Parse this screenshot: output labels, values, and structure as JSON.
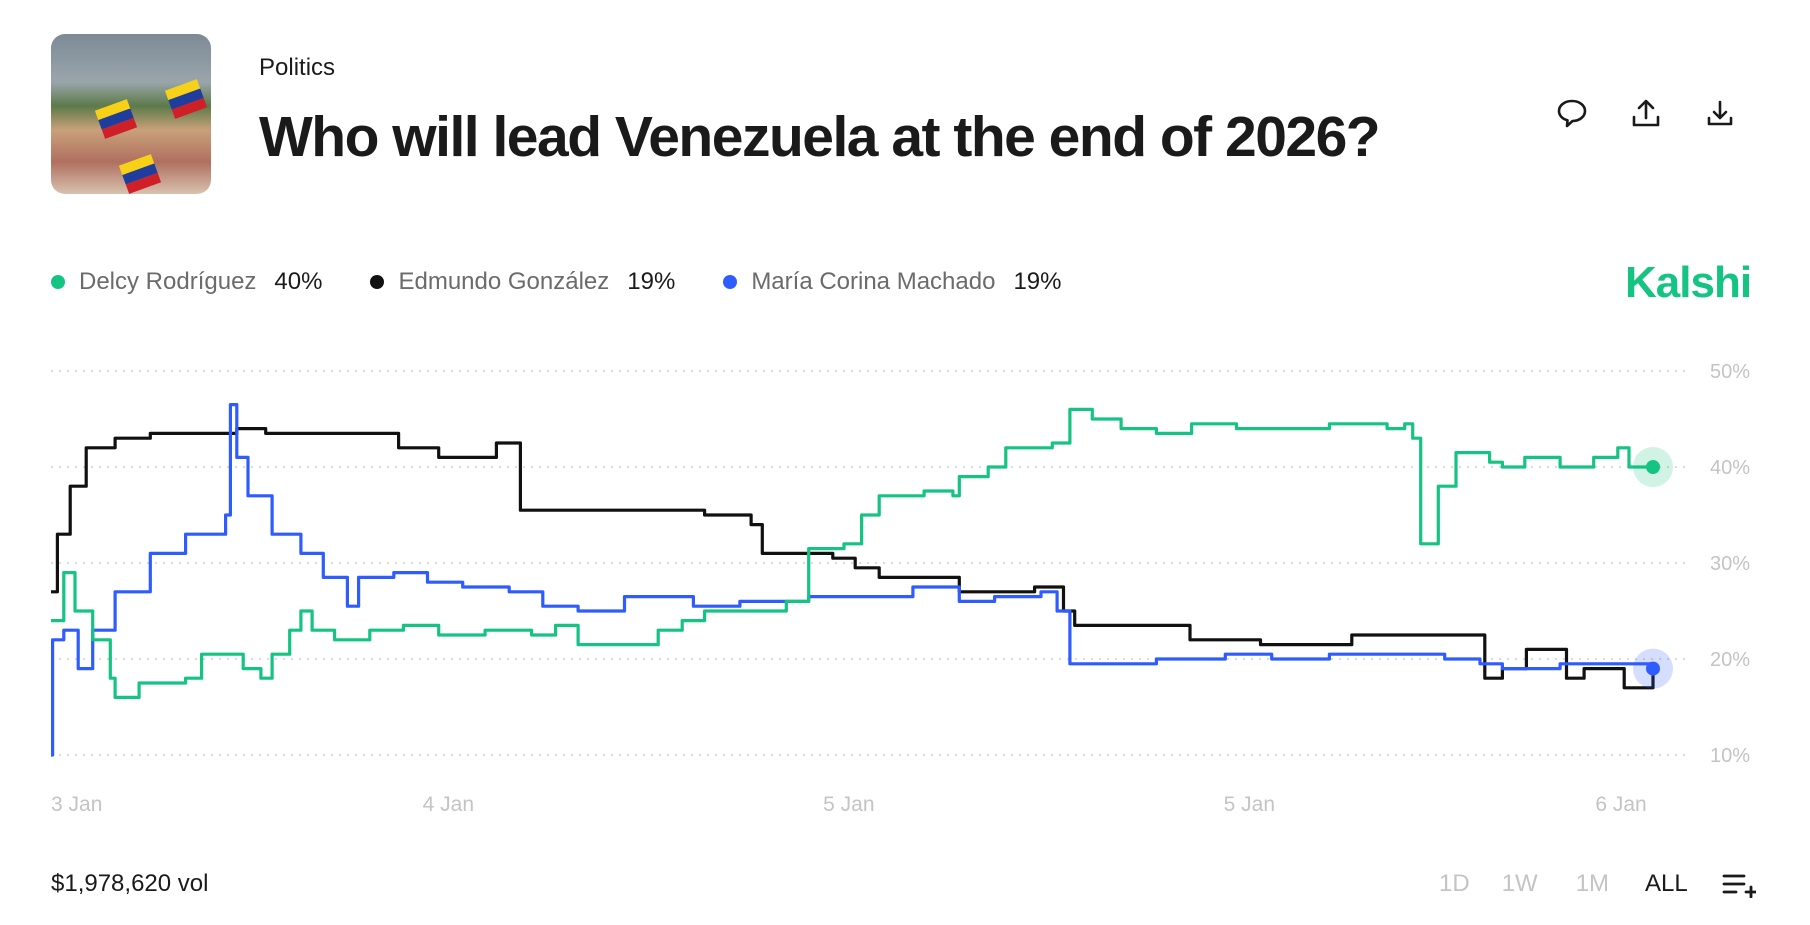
{
  "header": {
    "category": "Politics",
    "title": "Who will lead Venezuela at the end of 2026?",
    "actions": [
      "comment-icon",
      "share-icon",
      "download-icon"
    ]
  },
  "brand": "Kalshi",
  "legend": [
    {
      "name": "Delcy Rodríguez",
      "value": "40%",
      "color": "#15c383"
    },
    {
      "name": "Edmundo González",
      "value": "19%",
      "color": "#111111"
    },
    {
      "name": "María Corina Machado",
      "value": "19%",
      "color": "#2e5cff"
    }
  ],
  "footer": {
    "volume": "$1,978,620 vol",
    "ranges": [
      "1D",
      "1W",
      "1M",
      "ALL"
    ],
    "active_range": "ALL"
  },
  "chart_data": {
    "type": "line",
    "ylim": [
      10,
      50
    ],
    "yticks": [
      50,
      40,
      30,
      20,
      10
    ],
    "ytick_labels": [
      "50%",
      "40%",
      "30%",
      "20%",
      "10%"
    ],
    "x_range": [
      0,
      100
    ],
    "xtick_labels": [
      {
        "t": 0,
        "label": "3 Jan"
      },
      {
        "t": 23.2,
        "label": "4 Jan"
      },
      {
        "t": 48.2,
        "label": "5 Jan"
      },
      {
        "t": 73.2,
        "label": "5 Jan"
      },
      {
        "t": 96.4,
        "label": "6 Jan"
      }
    ],
    "grid": true,
    "legend_position": "top-left",
    "series": [
      {
        "name": "Edmundo González",
        "color": "#111111",
        "points": [
          [
            0,
            27
          ],
          [
            0.4,
            33
          ],
          [
            1.2,
            38
          ],
          [
            2.2,
            42
          ],
          [
            4,
            43
          ],
          [
            6.2,
            43.5
          ],
          [
            11.6,
            44
          ],
          [
            13.4,
            43.5
          ],
          [
            21.7,
            42
          ],
          [
            24.2,
            41
          ],
          [
            27.8,
            42.5
          ],
          [
            29.3,
            35.5
          ],
          [
            32.5,
            35.5
          ],
          [
            40.8,
            35
          ],
          [
            43.7,
            34
          ],
          [
            44.4,
            31
          ],
          [
            48.8,
            30.5
          ],
          [
            50.2,
            29.5
          ],
          [
            51.7,
            28.5
          ],
          [
            56.7,
            27
          ],
          [
            61.4,
            27.5
          ],
          [
            63.2,
            25
          ],
          [
            63.9,
            23.5
          ],
          [
            71.1,
            22
          ],
          [
            75.5,
            21.5
          ],
          [
            81.2,
            22.5
          ],
          [
            88.8,
            22.5
          ],
          [
            89.5,
            18
          ],
          [
            90.6,
            19
          ],
          [
            92.1,
            21
          ],
          [
            94.6,
            18
          ],
          [
            95.7,
            19
          ],
          [
            98.2,
            17
          ],
          [
            100,
            19
          ]
        ]
      },
      {
        "name": "María Corina Machado",
        "color": "#2e5cff",
        "points": [
          [
            0,
            10
          ],
          [
            0.1,
            22
          ],
          [
            0.8,
            23
          ],
          [
            1.7,
            19
          ],
          [
            2.6,
            23
          ],
          [
            4,
            27
          ],
          [
            6.2,
            31
          ],
          [
            8.4,
            33
          ],
          [
            10.9,
            35
          ],
          [
            11.2,
            46.5
          ],
          [
            11.6,
            41
          ],
          [
            12.3,
            37
          ],
          [
            13.8,
            33
          ],
          [
            15.6,
            31
          ],
          [
            17,
            28.5
          ],
          [
            18.5,
            25.5
          ],
          [
            19.2,
            28.5
          ],
          [
            21.4,
            29
          ],
          [
            23.5,
            28
          ],
          [
            25.7,
            27.5
          ],
          [
            28.6,
            27
          ],
          [
            30.7,
            25.5
          ],
          [
            32.9,
            25
          ],
          [
            35.8,
            26.5
          ],
          [
            40.1,
            25.5
          ],
          [
            43,
            26
          ],
          [
            47.3,
            26.5
          ],
          [
            53.8,
            27.5
          ],
          [
            56.7,
            26
          ],
          [
            58.9,
            26.5
          ],
          [
            61.8,
            27
          ],
          [
            62.8,
            25
          ],
          [
            63.6,
            19.5
          ],
          [
            69,
            20
          ],
          [
            73.3,
            20.5
          ],
          [
            76.2,
            20
          ],
          [
            79.8,
            20.5
          ],
          [
            87,
            20
          ],
          [
            89.2,
            19.5
          ],
          [
            90.6,
            19
          ],
          [
            94.2,
            19.5
          ],
          [
            100,
            19
          ]
        ]
      },
      {
        "name": "Delcy Rodríguez",
        "color": "#15c383",
        "points": [
          [
            0,
            24
          ],
          [
            0.8,
            29
          ],
          [
            1.5,
            25
          ],
          [
            2.6,
            22
          ],
          [
            3.7,
            18
          ],
          [
            4,
            16
          ],
          [
            5.5,
            17.5
          ],
          [
            8.4,
            18
          ],
          [
            9.4,
            20.5
          ],
          [
            12,
            19
          ],
          [
            13.1,
            18
          ],
          [
            13.8,
            20.5
          ],
          [
            14.9,
            23
          ],
          [
            15.6,
            25
          ],
          [
            16.3,
            23
          ],
          [
            17.7,
            22
          ],
          [
            19.9,
            23
          ],
          [
            22,
            23.5
          ],
          [
            24.2,
            22.5
          ],
          [
            27.1,
            23
          ],
          [
            30,
            22.5
          ],
          [
            31.5,
            23.5
          ],
          [
            32.9,
            21.5
          ],
          [
            37.2,
            21.5
          ],
          [
            37.9,
            23
          ],
          [
            39.4,
            24
          ],
          [
            40.8,
            25
          ],
          [
            43.7,
            25
          ],
          [
            45.9,
            26
          ],
          [
            47.3,
            31.5
          ],
          [
            49.5,
            32
          ],
          [
            50.6,
            35
          ],
          [
            51.7,
            37
          ],
          [
            54.5,
            37.5
          ],
          [
            56.3,
            37
          ],
          [
            56.7,
            39
          ],
          [
            58.5,
            40
          ],
          [
            59.6,
            42
          ],
          [
            62.5,
            42.5
          ],
          [
            63.6,
            46
          ],
          [
            65,
            45
          ],
          [
            66.8,
            44
          ],
          [
            69,
            43.5
          ],
          [
            71.2,
            44.5
          ],
          [
            74,
            44
          ],
          [
            77.6,
            44
          ],
          [
            79.8,
            44.5
          ],
          [
            83.4,
            44
          ],
          [
            84.5,
            44.5
          ],
          [
            85,
            43
          ],
          [
            85.5,
            32
          ],
          [
            86.6,
            38
          ],
          [
            87.7,
            41.5
          ],
          [
            89.8,
            40.5
          ],
          [
            90.6,
            40
          ],
          [
            92,
            41
          ],
          [
            94.2,
            40
          ],
          [
            96.3,
            41
          ],
          [
            97.8,
            42
          ],
          [
            98.5,
            40
          ],
          [
            100,
            40
          ]
        ]
      }
    ]
  }
}
